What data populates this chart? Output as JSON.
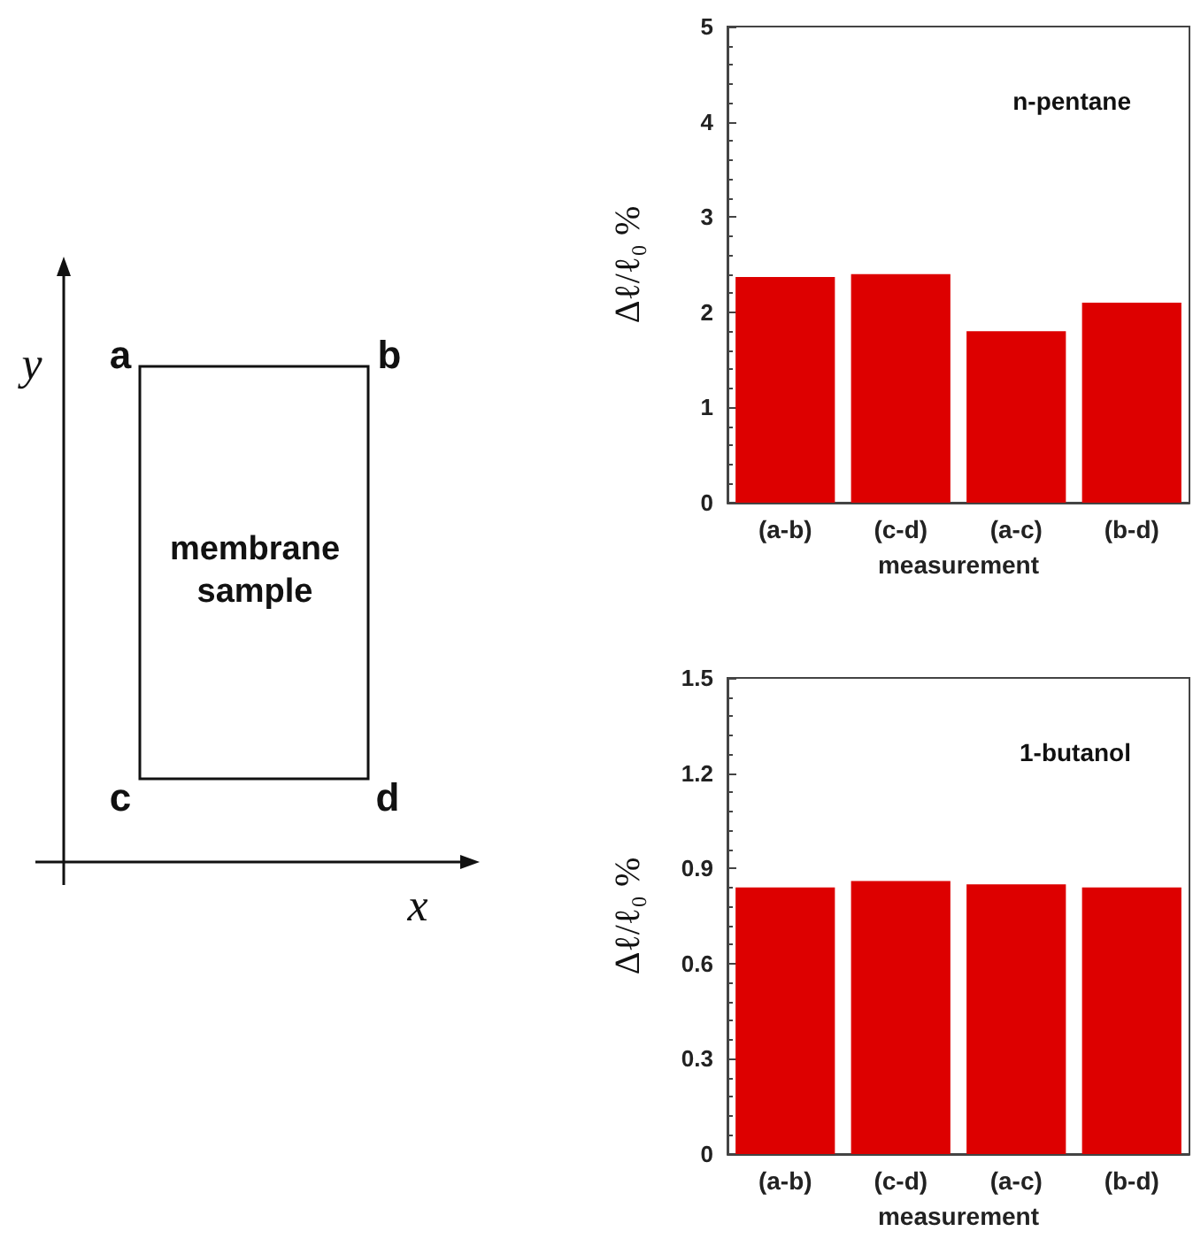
{
  "chart_data": [
    {
      "type": "other",
      "annotations": [
        "y",
        "a",
        "b",
        "membrane\nsample",
        "c",
        "d",
        "x"
      ]
    },
    {
      "type": "bar",
      "title": "n-pentane",
      "xlabel": "measurement",
      "ylabel": "Δℓ/ℓ₀ %",
      "categories": [
        "(a-b)",
        "(c-d)",
        "(a-c)",
        "(b-d)"
      ],
      "values": [
        2.37,
        2.4,
        1.8,
        2.1
      ],
      "color": "#dd0000",
      "ylim": [
        0,
        5
      ],
      "yticks": [
        0,
        1,
        2,
        3,
        4,
        5
      ]
    },
    {
      "type": "bar",
      "title": "1-butanol",
      "xlabel": "measurement",
      "ylabel": "Δℓ/ℓ₀ %",
      "categories": [
        "(a-b)",
        "(c-d)",
        "(a-c)",
        "(b-d)"
      ],
      "values": [
        0.84,
        0.86,
        0.85,
        0.84
      ],
      "color": "#dd0000",
      "ylim": [
        0,
        1.5
      ],
      "yticks": [
        0,
        0.3,
        0.6,
        0.9,
        1.2,
        1.5
      ]
    }
  ]
}
